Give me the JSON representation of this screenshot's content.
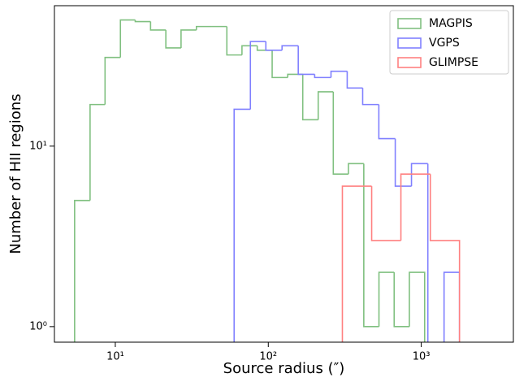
{
  "chart_data": {
    "type": "histogram",
    "xlabel": "Source radius (″)",
    "ylabel": "Number of HII regions",
    "xlim": [
      4,
      4000
    ],
    "ylim": [
      0.82,
      60
    ],
    "xscale": "log",
    "yscale": "log",
    "xticks": [
      {
        "value": 10,
        "label": "10¹"
      },
      {
        "value": 100,
        "label": "10²"
      },
      {
        "value": 1000,
        "label": "10³"
      }
    ],
    "yticks": [
      {
        "value": 1,
        "label": "10⁰"
      },
      {
        "value": 10,
        "label": "10¹"
      }
    ],
    "legend": "upper right",
    "series": [
      {
        "name": "MAGPIS",
        "color": "#80c080",
        "bins": [
          5.42,
          6.84,
          8.57,
          10.8,
          13.5,
          17.0,
          21.4,
          26.9,
          33.9,
          42.6,
          53.6,
          67.3,
          84.7,
          106,
          134,
          168,
          212,
          266,
          334,
          421,
          529,
          665,
          836,
          1052
        ],
        "values": [
          5,
          17,
          31,
          50,
          49,
          44,
          35,
          44,
          46,
          46,
          32,
          36,
          34,
          24,
          25,
          14,
          20,
          7,
          8,
          1,
          2,
          1,
          2
        ]
      },
      {
        "name": "VGPS",
        "color": "#8080ff",
        "bins": [
          59.8,
          76.4,
          96.4,
          123,
          157,
          201,
          257,
          328,
          414,
          528,
          676,
          863,
          1104,
          1409,
          1778
        ],
        "values": [
          16,
          38,
          34,
          36,
          25,
          24,
          26,
          21,
          17,
          11,
          6,
          8,
          0,
          2
        ]
      },
      {
        "name": "GLIMPSE",
        "color": "#ff8080",
        "bins": [
          305,
          474,
          736,
          1146,
          1778
        ],
        "values": [
          6,
          3,
          7,
          3
        ]
      }
    ]
  }
}
